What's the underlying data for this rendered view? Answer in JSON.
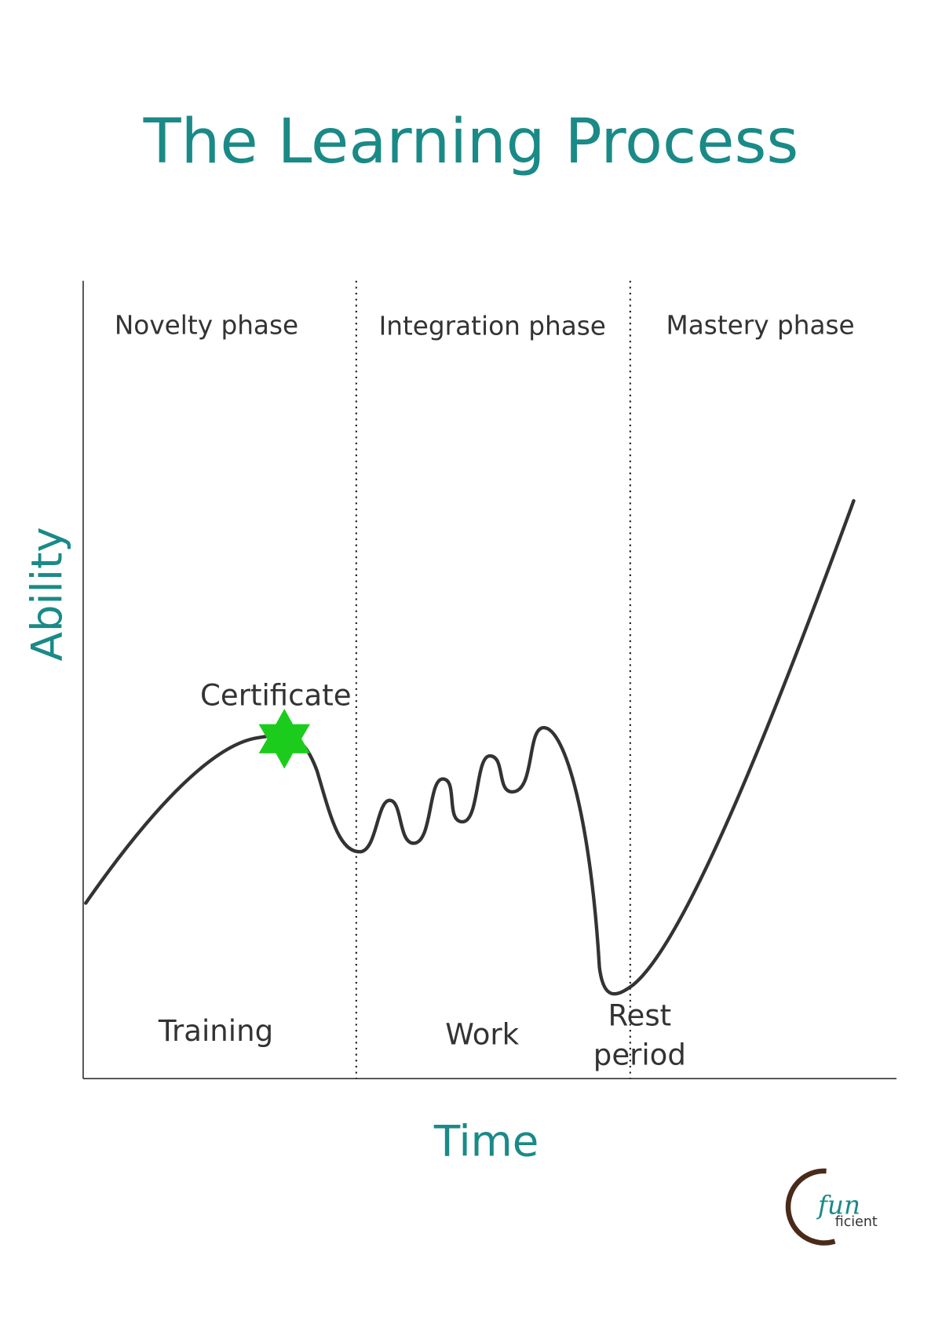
{
  "title": "The Learning Process",
  "axes": {
    "x_label": "Time",
    "y_label": "Ability"
  },
  "phases": [
    "Novelty phase",
    "Integration phase",
    "Mastery phase"
  ],
  "activities": [
    {
      "lines": [
        "Training"
      ]
    },
    {
      "lines": [
        "Work"
      ]
    },
    {
      "lines": [
        "Rest",
        "period"
      ]
    }
  ],
  "annotation": "Certificate",
  "logo": {
    "top": "fun",
    "bottom": "ficient"
  }
}
